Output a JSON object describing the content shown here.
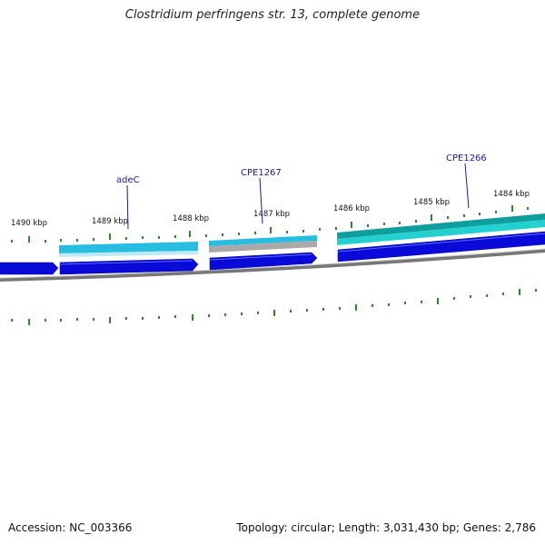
{
  "map": {
    "title": "Clostridium perfringens str. 13, complete genome",
    "accession": "Accession: NC_003366",
    "summary": "Topology: circular; Length: 3,031,430 bp; Genes: 2,786",
    "colors": {
      "backbone": "#8a8a8a",
      "cds_forward": "#0a0ad8",
      "feature_light": "#27bde0",
      "feature_teal": "#11b5b5",
      "feature_gray": "#a9a9a9",
      "ticks": "#2a8a2a",
      "gene_label": "#1a1aa6"
    }
  },
  "scale": {
    "tick_labels": [
      "1490 kbp",
      "1489 kbp",
      "1488 kbp",
      "1487 kbp",
      "1486 kbp",
      "1485 kbp",
      "1484 kbp"
    ]
  },
  "genes": {
    "labels": [
      "adeC",
      "CPE1267",
      "CPE1266"
    ]
  }
}
